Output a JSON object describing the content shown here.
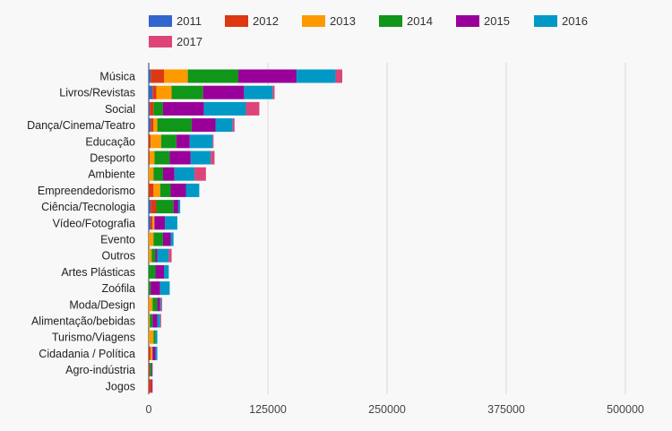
{
  "chart_data": {
    "type": "bar",
    "orientation": "horizontal",
    "stacked": true,
    "legend_position": "top",
    "grid": true,
    "xlim": [
      0,
      500000
    ],
    "x_ticks": [
      "0",
      "125000",
      "250000",
      "375000",
      "500000"
    ],
    "x_tick_values": [
      0,
      125000,
      250000,
      375000,
      500000
    ],
    "categories": [
      "Música",
      "Livros/Revistas",
      "Social",
      "Dança/Cinema/Teatro",
      "Educação",
      "Desporto",
      "Ambiente",
      "Empreendedorismo",
      "Ciência/Tecnologia",
      "Vídeo/Fotografia",
      "Evento",
      "Outros",
      "Artes Plásticas",
      "Zoófila",
      "Moda/Design",
      "Alimentação/bebidas",
      "Turismo/Viagens",
      "Cidadania / Política",
      "Agro-indústria",
      "Jogos"
    ],
    "series": [
      {
        "name": "2011",
        "color": "#3366cc",
        "values": [
          2000,
          4000,
          1000,
          2000,
          0,
          0,
          0,
          0,
          2000,
          2000,
          0,
          0,
          0,
          0,
          0,
          0,
          0,
          0,
          0,
          0
        ]
      },
      {
        "name": "2012",
        "color": "#dc3912",
        "values": [
          14000,
          4000,
          4000,
          3000,
          2000,
          1000,
          0,
          5000,
          6000,
          2000,
          0,
          0,
          0,
          0,
          0,
          0,
          0,
          2000,
          1000,
          3000
        ]
      },
      {
        "name": "2013",
        "color": "#ff9900",
        "values": [
          25000,
          16000,
          0,
          4000,
          11000,
          5000,
          5000,
          7000,
          0,
          2000,
          5000,
          3000,
          0,
          0,
          4000,
          1000,
          5000,
          2000,
          0,
          0
        ]
      },
      {
        "name": "2014",
        "color": "#109618",
        "values": [
          53000,
          33000,
          10000,
          36000,
          16000,
          16000,
          10000,
          11000,
          18000,
          0,
          10000,
          4000,
          7000,
          2000,
          5000,
          3000,
          2000,
          0,
          2000,
          0
        ]
      },
      {
        "name": "2015",
        "color": "#990099",
        "values": [
          61000,
          43000,
          43000,
          25000,
          14000,
          22000,
          12000,
          16000,
          5000,
          11000,
          8000,
          2000,
          9000,
          10000,
          3000,
          5000,
          0,
          3000,
          1000,
          1000
        ]
      },
      {
        "name": "2016",
        "color": "#0099c6",
        "values": [
          41000,
          30000,
          44000,
          18000,
          24000,
          21000,
          21000,
          14000,
          2000,
          13000,
          3000,
          12000,
          5000,
          10000,
          1000,
          3000,
          2000,
          2000,
          0,
          0
        ]
      },
      {
        "name": "2017",
        "color": "#dd4477",
        "values": [
          7000,
          2000,
          14000,
          2000,
          1000,
          4000,
          12000,
          0,
          0,
          0,
          0,
          3000,
          0,
          0,
          1000,
          1000,
          0,
          0,
          0,
          0
        ]
      }
    ]
  }
}
